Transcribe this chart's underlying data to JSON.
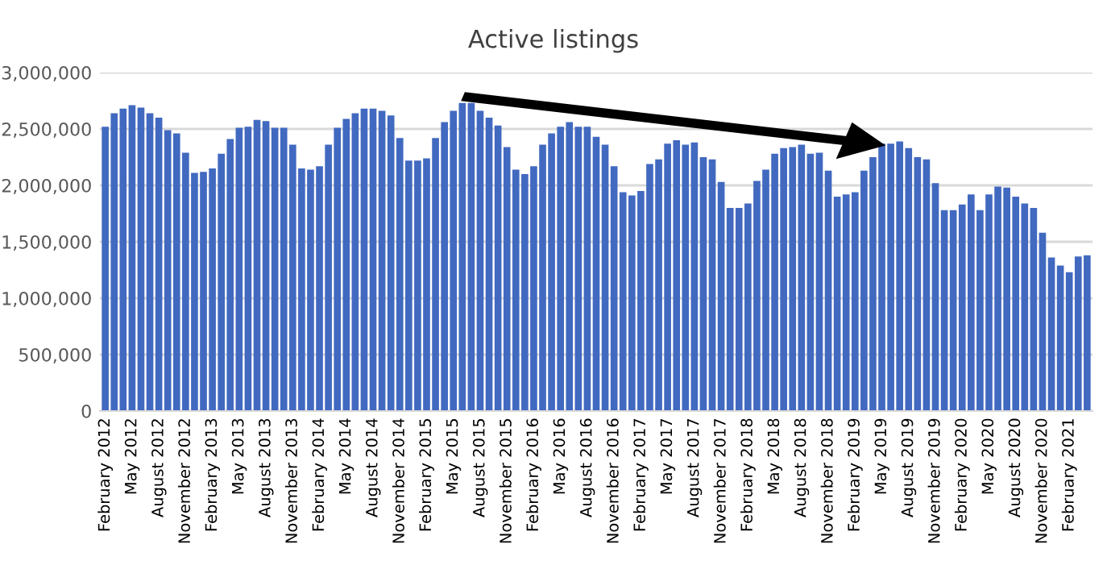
{
  "chart_data": {
    "type": "bar",
    "title": "Active listings",
    "categories": [
      "February 2012",
      null,
      null,
      "May 2012",
      null,
      null,
      "August 2012",
      null,
      null,
      "November 2012",
      null,
      null,
      "February 2013",
      null,
      null,
      "May 2013",
      null,
      null,
      "August 2013",
      null,
      null,
      "November 2013",
      null,
      null,
      "February 2014",
      null,
      null,
      "May 2014",
      null,
      null,
      "August 2014",
      null,
      null,
      "November 2014",
      null,
      null,
      "February 2015",
      null,
      null,
      "May 2015",
      null,
      null,
      "August 2015",
      null,
      null,
      "November 2015",
      null,
      null,
      "February 2016",
      null,
      null,
      "May 2016",
      null,
      null,
      "August 2016",
      null,
      null,
      "November 2016",
      null,
      null,
      "February 2017",
      null,
      null,
      "May 2017",
      null,
      null,
      "August 2017",
      null,
      null,
      "November 2017",
      null,
      null,
      "February 2018",
      null,
      null,
      "May 2018",
      null,
      null,
      "August 2018",
      null,
      null,
      "November 2018",
      null,
      null,
      "February 2019",
      null,
      null,
      "May 2019",
      null,
      null,
      "August 2019",
      null,
      null,
      "November 2019",
      null,
      null,
      "February 2020",
      null,
      null,
      "May 2020",
      null,
      null,
      "August 2020",
      null,
      null,
      "November 2020",
      null,
      null,
      "February 2021",
      null,
      null
    ],
    "values": [
      2520000,
      2640000,
      2680000,
      2710000,
      2690000,
      2640000,
      2600000,
      2490000,
      2460000,
      2290000,
      2110000,
      2120000,
      2150000,
      2280000,
      2410000,
      2510000,
      2520000,
      2580000,
      2570000,
      2510000,
      2510000,
      2360000,
      2150000,
      2140000,
      2170000,
      2360000,
      2510000,
      2590000,
      2640000,
      2680000,
      2680000,
      2660000,
      2620000,
      2420000,
      2220000,
      2220000,
      2240000,
      2420000,
      2560000,
      2660000,
      2730000,
      2730000,
      2660000,
      2600000,
      2530000,
      2340000,
      2140000,
      2100000,
      2170000,
      2360000,
      2460000,
      2520000,
      2560000,
      2520000,
      2520000,
      2430000,
      2360000,
      2170000,
      1940000,
      1910000,
      1950000,
      2190000,
      2230000,
      2370000,
      2400000,
      2360000,
      2380000,
      2250000,
      2230000,
      2030000,
      1800000,
      1800000,
      1840000,
      2040000,
      2140000,
      2280000,
      2330000,
      2340000,
      2360000,
      2280000,
      2290000,
      2130000,
      1900000,
      1920000,
      1940000,
      2130000,
      2250000,
      2370000,
      2370000,
      2390000,
      2330000,
      2250000,
      2230000,
      2020000,
      1780000,
      1780000,
      1830000,
      1920000,
      1780000,
      1920000,
      1990000,
      1980000,
      1900000,
      1840000,
      1800000,
      1580000,
      1360000,
      1290000,
      1230000,
      1370000,
      1380000
    ],
    "color": "#4169c0",
    "ylim": [
      0,
      3000000
    ],
    "yticks": [
      0,
      {
        "value": 500000,
        "label": "500,000"
      },
      {
        "value": 1000000,
        "label": "1,000,000"
      },
      {
        "value": 1500000,
        "label": "1,500,000"
      },
      {
        "value": 2000000,
        "label": "2,000,000"
      },
      {
        "value": 2500000,
        "label": "2,500,000"
      },
      {
        "value": 3000000,
        "label": "3,000,000"
      }
    ],
    "grid": "y",
    "legend": false
  }
}
